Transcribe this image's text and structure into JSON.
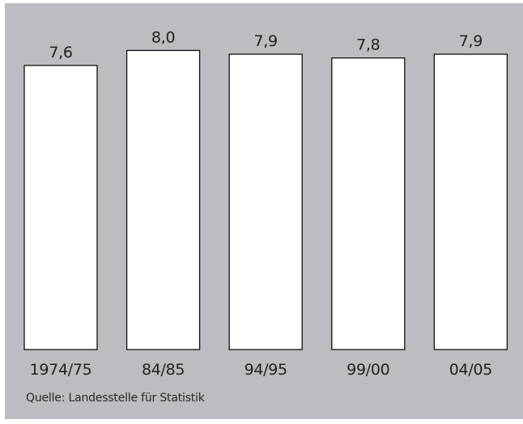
{
  "chart_data": {
    "type": "bar",
    "categories": [
      "1974/75",
      "84/85",
      "94/95",
      "99/00",
      "04/05"
    ],
    "values": [
      7.6,
      8.0,
      7.9,
      7.8,
      7.9
    ],
    "value_labels": [
      "7,6",
      "8,0",
      "7,9",
      "7,8",
      "7,9"
    ],
    "title": "",
    "xlabel": "",
    "ylabel": "",
    "grid": false,
    "legend": "none",
    "colors": {
      "background": "#bcbcc1",
      "bar_fill": "#ffffff",
      "bar_stroke": "#111111",
      "text": "#222222"
    }
  },
  "source": "Quelle: Landesstelle für Statistik"
}
